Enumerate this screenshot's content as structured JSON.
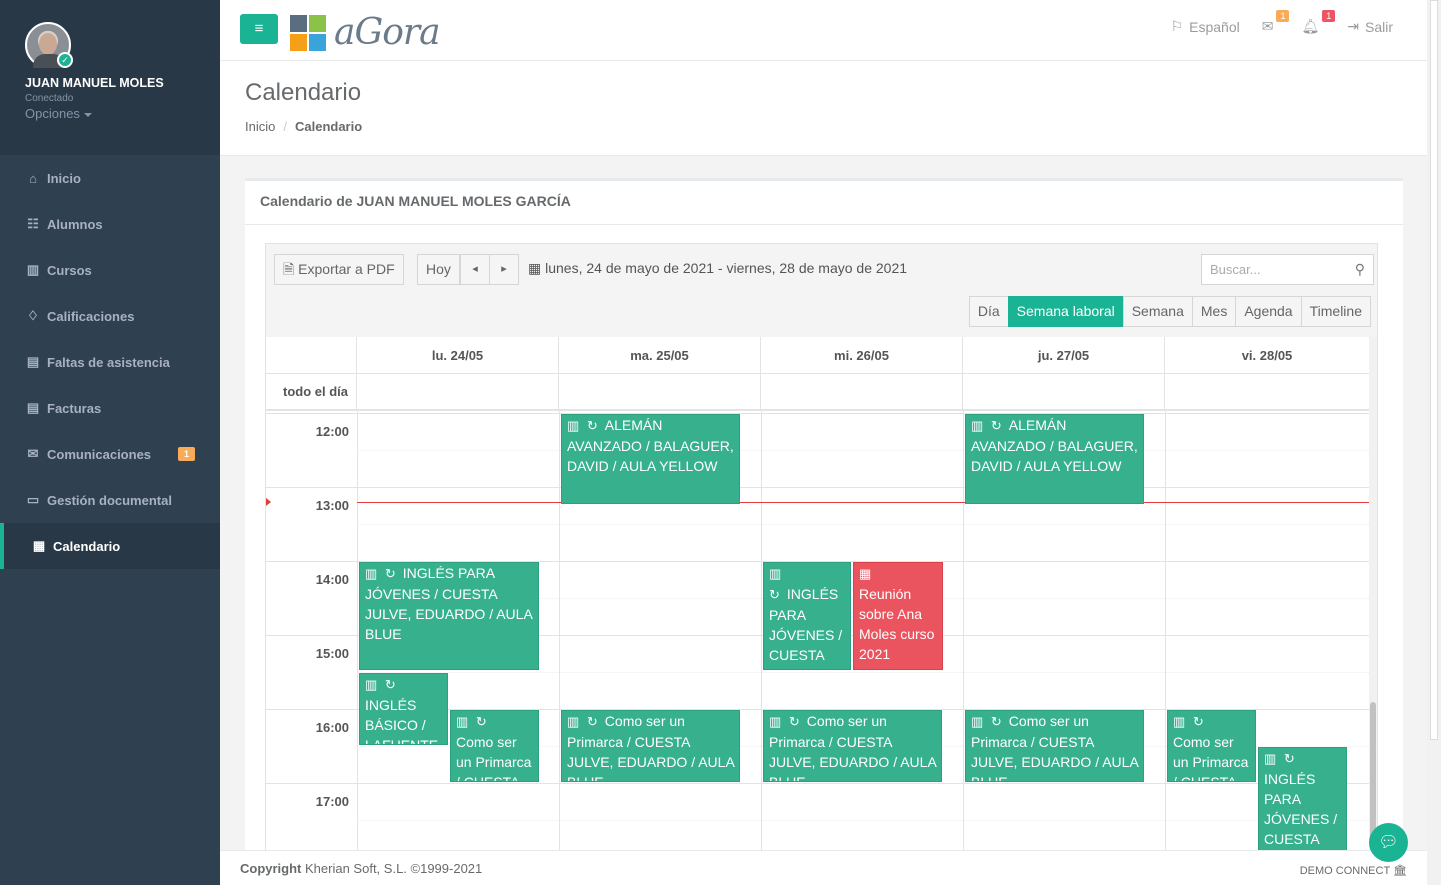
{
  "user": {
    "name": "JUAN MANUEL MOLES",
    "status": "Conectado",
    "options": "Opciones"
  },
  "nav": [
    {
      "label": "Inicio",
      "icon": "⌂"
    },
    {
      "label": "Alumnos",
      "icon": "☷"
    },
    {
      "label": "Cursos",
      "icon": "▥"
    },
    {
      "label": "Calificaciones",
      "icon": "♢"
    },
    {
      "label": "Faltas de asistencia",
      "icon": "▤"
    },
    {
      "label": "Facturas",
      "icon": "▤"
    },
    {
      "label": "Comunicaciones",
      "icon": "✉",
      "badge": "1"
    },
    {
      "label": "Gestión documental",
      "icon": "▭"
    },
    {
      "label": "Calendario",
      "icon": "▦"
    }
  ],
  "topbar": {
    "menu_icon": "≡",
    "logo_text": "aGora",
    "language": "Español",
    "mail_badge": "1",
    "bell_badge": "1",
    "logout": "Salir"
  },
  "page": {
    "title": "Calendario",
    "crumb_home": "Inicio",
    "crumb_sep": "/",
    "crumb_current": "Calendario"
  },
  "calendar": {
    "box_title": "Calendario de JUAN MANUEL MOLES GARCÍA",
    "export": "Exportar a PDF",
    "today": "Hoy",
    "prev": "◂",
    "next": "▸",
    "date_range": "lunes, 24 de mayo de 2021 - viernes, 28 de mayo de 2021",
    "search_placeholder": "Buscar...",
    "views": [
      "Día",
      "Semana laboral",
      "Semana",
      "Mes",
      "Agenda",
      "Timeline"
    ],
    "selected_view": "Semana laboral",
    "days": [
      "lu. 24/05",
      "ma. 25/05",
      "mi. 26/05",
      "ju. 27/05",
      "vi. 28/05"
    ],
    "allday_label": "todo el día",
    "hours": [
      "12:00",
      "13:00",
      "14:00",
      "15:00",
      "16:00",
      "17:00"
    ],
    "events": [
      {
        "text": "ALEMÁN AVANZADO / BALAGUER, DAVID / AULA YELLOW"
      },
      {
        "text": "ALEMÁN AVANZADO / BALAGUER, DAVID / AULA YELLOW"
      },
      {
        "text": "INGLÉS PARA JÓVENES / CUESTA JULVE, EDUARDO / AULA BLUE"
      },
      {
        "text": "INGLÉS PARA JÓVENES / CUESTA JULVE"
      },
      {
        "text": "Reunión sobre Ana Moles curso 2021"
      },
      {
        "text": "INGLÉS BÁSICO / LAFUENTE"
      },
      {
        "text": "Como ser un Primarca / CUESTA"
      },
      {
        "text": "Como ser un Primarca / CUESTA JULVE, EDUARDO / AULA BLUE"
      },
      {
        "text": "Como ser un Primarca / CUESTA JULVE, EDUARDO / AULA BLUE"
      },
      {
        "text": "Como ser un Primarca / CUESTA JULVE, EDUARDO / AULA BLUE"
      },
      {
        "text": "Como ser un Primarca / CUESTA"
      },
      {
        "text": "INGLÉS PARA JÓVENES / CUESTA"
      }
    ]
  },
  "footer": {
    "copyright_bold": "Copyright",
    "copyright": "Kherian Soft, S.L. ©1999-2021",
    "right": "DEMO CONNECT"
  },
  "colors": {
    "accent": "#1ab394",
    "event": "#37b08e",
    "event_red": "#e9545f",
    "sidebar": "#2f4050"
  }
}
